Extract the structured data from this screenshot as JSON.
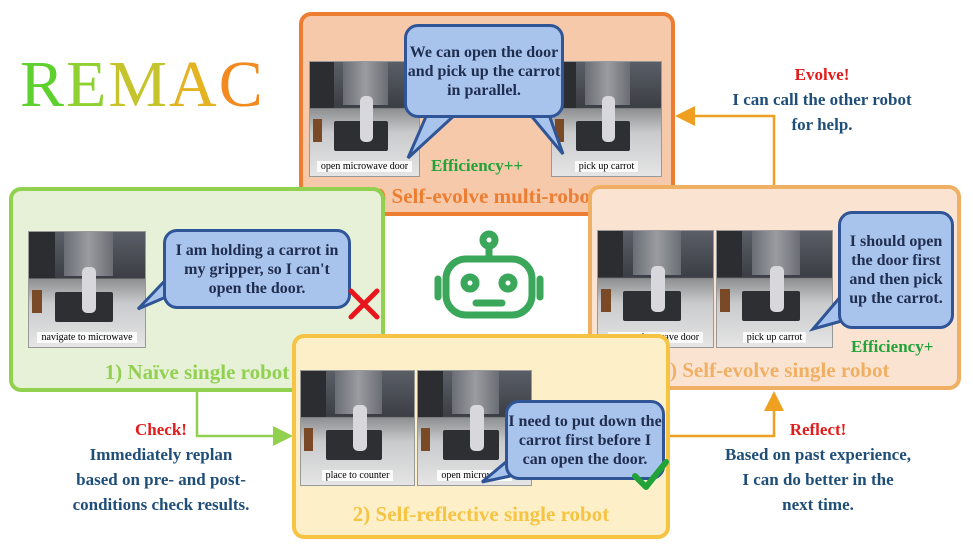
{
  "title": {
    "letters": [
      "R",
      "E",
      "M",
      "A",
      "C"
    ],
    "colors": [
      "#5fd12e",
      "#8fd132",
      "#c6c42d",
      "#e3b322",
      "#f28a1f"
    ]
  },
  "panels": {
    "naive": {
      "title": "1) Naïve single robot",
      "color": "#92d050",
      "scene_caption": "navigate to microwave",
      "bubble": "I am holding a carrot in my gripper, so I can't open the door."
    },
    "reflective": {
      "title": "2) Self-reflective single robot",
      "color": "#f6c342",
      "scene_captions": [
        "place to counter",
        "open microwave"
      ],
      "bubble": "I need to put down the carrot first before I can open the door."
    },
    "evolve_single": {
      "title": "3) Self-evolve single robot",
      "color": "#f0b064",
      "scene_captions": [
        "open microwave door",
        "pick up carrot"
      ],
      "bubble": "I should open the door first and then pick up the carrot.",
      "efficiency": "Efficiency+"
    },
    "evolve_multi": {
      "title": "4) Self-evolve multi-robots",
      "color": "#ed7d31",
      "scene_captions": [
        "open microwave door",
        "pick up carrot"
      ],
      "bubble": "We can open the door and pick up the carrot in parallel.",
      "efficiency": "Efficiency++"
    }
  },
  "notes": {
    "check": {
      "head": "Check!",
      "body": [
        "Immediately replan",
        "based on pre- and post-",
        "conditions check results."
      ]
    },
    "reflect": {
      "head": "Reflect!",
      "body": [
        "Based on past experience,",
        "I can do better in the",
        "next time."
      ]
    },
    "evolve": {
      "head": "Evolve!",
      "body": [
        "I can call the other robot",
        "for help."
      ]
    }
  },
  "icons": {
    "robot": "robot-icon",
    "cross": "red-cross-icon",
    "check": "green-check-icon"
  },
  "colors": {
    "arrow": "#f0a020",
    "green_arrow": "#92d050",
    "robot_green": "#3aa75a"
  }
}
